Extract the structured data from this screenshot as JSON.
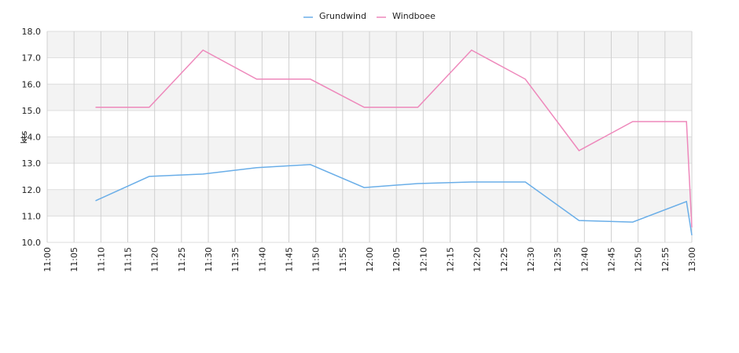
{
  "chart_data": {
    "type": "line",
    "y_label": "kts",
    "x": [
      "11:09",
      "11:19",
      "11:29",
      "11:39",
      "11:49",
      "11:59",
      "12:09",
      "12:19",
      "12:29",
      "12:39",
      "12:49",
      "12:59",
      "13:00"
    ],
    "series": [
      {
        "name": "Grundwind",
        "color": "#6aaee8",
        "values": [
          11.58,
          12.5,
          12.59,
          12.83,
          12.95,
          12.08,
          12.23,
          12.29,
          12.29,
          10.83,
          10.77,
          11.55,
          10.27
        ]
      },
      {
        "name": "Windboee",
        "color": "#ee88bb",
        "values": [
          15.12,
          15.12,
          17.29,
          16.19,
          16.19,
          15.12,
          15.12,
          17.29,
          16.19,
          13.48,
          14.58,
          14.58,
          10.57
        ]
      }
    ],
    "xlim": [
      "11:00",
      "13:00"
    ],
    "xticks": [
      "11:00",
      "11:05",
      "11:10",
      "11:15",
      "11:20",
      "11:25",
      "11:30",
      "11:35",
      "11:40",
      "11:45",
      "11:50",
      "11:55",
      "12:00",
      "12:05",
      "12:10",
      "12:15",
      "12:20",
      "12:25",
      "12:30",
      "12:35",
      "12:40",
      "12:45",
      "12:50",
      "12:55",
      "13:00"
    ],
    "ylim": [
      10,
      18
    ],
    "yticks": [
      {
        "value": 10,
        "label": "10.0"
      },
      {
        "value": 11,
        "label": "11.0"
      },
      {
        "value": 12,
        "label": "12.0"
      },
      {
        "value": 13,
        "label": "13.0"
      },
      {
        "value": 14,
        "label": "14.0"
      },
      {
        "value": 15,
        "label": "15.0"
      },
      {
        "value": 16,
        "label": "16.0"
      },
      {
        "value": 17,
        "label": "17.0"
      },
      {
        "value": 18,
        "label": "18.0"
      }
    ],
    "grid": true,
    "legend": "top"
  }
}
